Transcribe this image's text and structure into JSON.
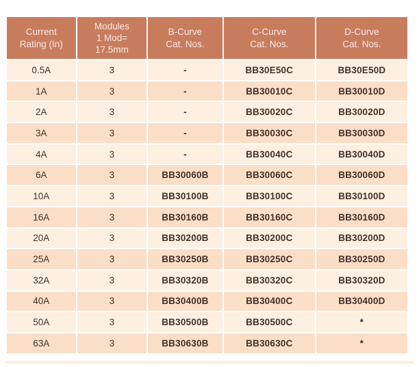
{
  "colors": {
    "page_bg": "#fefefe",
    "header_bg": "#c87c5e",
    "header_text": "#f7eae2",
    "row_light": "#fdf0e1",
    "row_dark": "#fadec7",
    "body_text": "#433028",
    "cell_gap": "#ffffff",
    "bottom_band": "#fbeedd"
  },
  "table": {
    "headers": [
      "Current\nRating (In)",
      "Modules\n1 Mod=\n17.5mm",
      "B-Curve\nCat. Nos.",
      "C-Curve\nCat. Nos.",
      "D-Curve\nCat. Nos."
    ],
    "rows": [
      {
        "cells": [
          "0.5A",
          "3",
          "-",
          "BB30E50C",
          "BB30E50D"
        ]
      },
      {
        "cells": [
          "1A",
          "3",
          "-",
          "BB30010C",
          "BB30010D"
        ]
      },
      {
        "cells": [
          "2A",
          "3",
          "-",
          "BB30020C",
          "BB30020D"
        ]
      },
      {
        "cells": [
          "3A",
          "3",
          "-",
          "BB30030C",
          "BB30030D"
        ]
      },
      {
        "cells": [
          "4A",
          "3",
          "-",
          "BB30040C",
          "BB30040D"
        ]
      },
      {
        "cells": [
          "6A",
          "3",
          "BB30060B",
          "BB30060C",
          "BB30060D"
        ]
      },
      {
        "cells": [
          "10A",
          "3",
          "BB30100B",
          "BB30100C",
          "BB30100D"
        ]
      },
      {
        "cells": [
          "16A",
          "3",
          "BB30160B",
          "BB30160C",
          "BB30160D"
        ]
      },
      {
        "cells": [
          "20A",
          "3",
          "BB30200B",
          "BB30200C",
          "BB30200D"
        ]
      },
      {
        "cells": [
          "25A",
          "3",
          "BB30250B",
          "BB30250C",
          "BB30250D"
        ]
      },
      {
        "cells": [
          "32A",
          "3",
          "BB30320B",
          "BB30320C",
          "BB30320D"
        ]
      },
      {
        "cells": [
          "40A",
          "3",
          "BB30400B",
          "BB30400C",
          "BB30400D"
        ]
      },
      {
        "cells": [
          "50A",
          "3",
          "BB30500B",
          "BB30500C",
          "*"
        ]
      },
      {
        "cells": [
          "63A",
          "3",
          "BB30630B",
          "BB30630C",
          "*"
        ]
      }
    ]
  }
}
